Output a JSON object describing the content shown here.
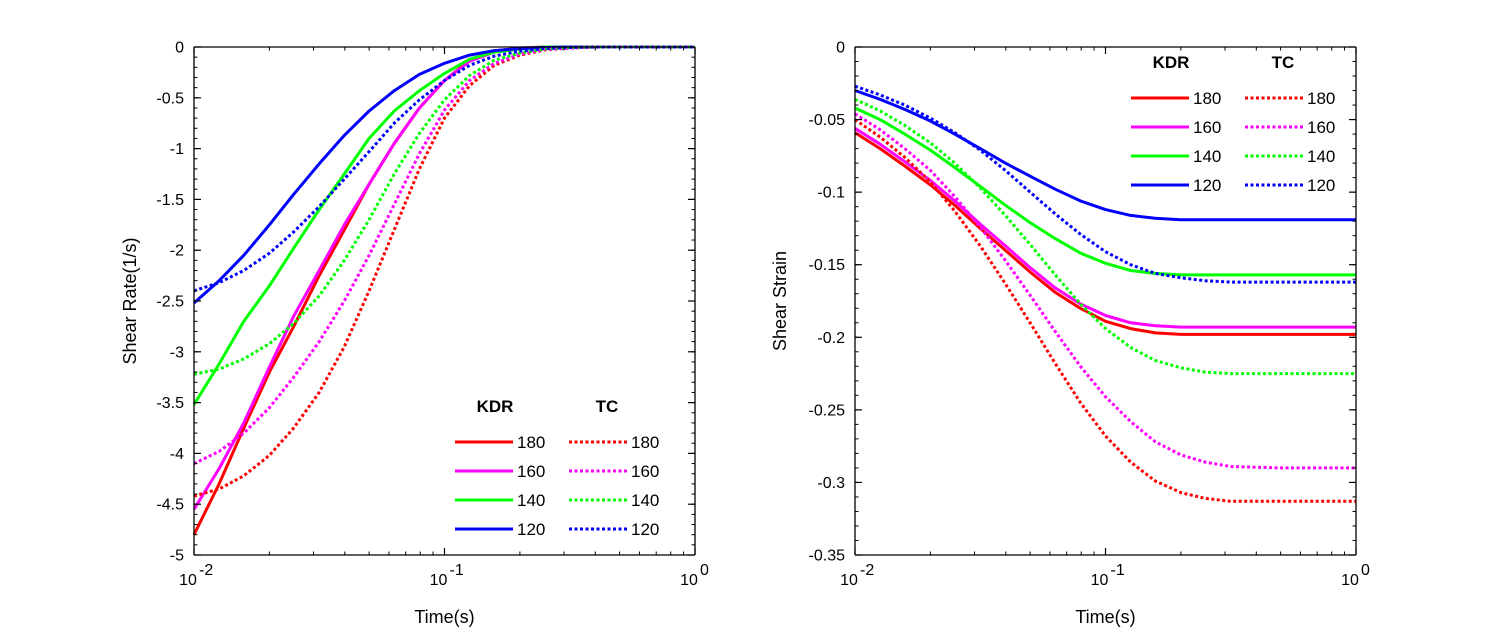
{
  "chart_data": [
    {
      "type": "line",
      "xscale": "log",
      "xlabel": "Time(s)",
      "ylabel": "Shear Rate(1/s)",
      "xlim": [
        0.01,
        1
      ],
      "ylim": [
        -5,
        0
      ],
      "yticks": [
        0,
        -0.5,
        -1,
        -1.5,
        -2,
        -2.5,
        -3,
        -3.5,
        -4,
        -4.5,
        -5
      ],
      "ytick_labels": [
        "0",
        "-0.5",
        "-1",
        "-1.5",
        "-2",
        "-2.5",
        "-3",
        "-3.5",
        "-4",
        "-4.5",
        "-5"
      ],
      "xticks": [
        0.01,
        0.1,
        1
      ],
      "xtick_labels": [
        {
          "base": "10",
          "exp": "-2"
        },
        {
          "base": "10",
          "exp": "-1"
        },
        {
          "base": "10",
          "exp": "0"
        }
      ],
      "legend": {
        "position": "bottom-right",
        "group_titles": [
          "KDR",
          "TC"
        ]
      },
      "series": [
        {
          "name": "180",
          "group": "KDR",
          "color": "#ff0000",
          "style": "solid",
          "x": [
            0.01,
            0.0126,
            0.0158,
            0.02,
            0.025,
            0.0316,
            0.0398,
            0.05,
            0.063,
            0.0794,
            0.1,
            0.126,
            0.158,
            0.2,
            0.25,
            0.316,
            0.5,
            1
          ],
          "y": [
            -4.8,
            -4.3,
            -3.75,
            -3.2,
            -2.75,
            -2.25,
            -1.8,
            -1.35,
            -0.95,
            -0.6,
            -0.33,
            -0.13,
            -0.04,
            -0.01,
            0,
            0,
            0,
            0
          ]
        },
        {
          "name": "160",
          "group": "KDR",
          "color": "#ff00ff",
          "style": "solid",
          "x": [
            0.01,
            0.0126,
            0.0158,
            0.02,
            0.025,
            0.0316,
            0.0398,
            0.05,
            0.063,
            0.0794,
            0.1,
            0.126,
            0.158,
            0.2,
            0.25,
            0.316,
            0.5,
            1
          ],
          "y": [
            -4.55,
            -4.15,
            -3.7,
            -3.15,
            -2.65,
            -2.2,
            -1.75,
            -1.35,
            -0.95,
            -0.6,
            -0.33,
            -0.14,
            -0.05,
            -0.015,
            0,
            0,
            0,
            0
          ]
        },
        {
          "name": "140",
          "group": "KDR",
          "color": "#00ff00",
          "style": "solid",
          "x": [
            0.01,
            0.0126,
            0.0158,
            0.02,
            0.025,
            0.0316,
            0.0398,
            0.05,
            0.063,
            0.0794,
            0.1,
            0.126,
            0.158,
            0.2,
            0.25,
            0.316,
            0.5,
            1
          ],
          "y": [
            -3.52,
            -3.12,
            -2.7,
            -2.35,
            -1.98,
            -1.6,
            -1.25,
            -0.9,
            -0.63,
            -0.43,
            -0.26,
            -0.12,
            -0.05,
            -0.02,
            0,
            0,
            0,
            0
          ]
        },
        {
          "name": "120",
          "group": "KDR",
          "color": "#0000ff",
          "style": "solid",
          "x": [
            0.01,
            0.0126,
            0.0158,
            0.02,
            0.025,
            0.0316,
            0.0398,
            0.05,
            0.063,
            0.0794,
            0.1,
            0.126,
            0.158,
            0.2,
            0.25,
            0.316,
            0.5,
            1
          ],
          "y": [
            -2.52,
            -2.3,
            -2.05,
            -1.75,
            -1.45,
            -1.15,
            -0.87,
            -0.63,
            -0.43,
            -0.27,
            -0.16,
            -0.08,
            -0.035,
            -0.015,
            -0.005,
            0,
            0,
            0
          ]
        },
        {
          "name": "180",
          "group": "TC",
          "color": "#ff0000",
          "style": "dotted",
          "x": [
            0.01,
            0.0126,
            0.0158,
            0.02,
            0.025,
            0.0316,
            0.0398,
            0.05,
            0.063,
            0.0794,
            0.1,
            0.126,
            0.158,
            0.2,
            0.25,
            0.316,
            0.4,
            0.5,
            1
          ],
          "y": [
            -4.42,
            -4.35,
            -4.22,
            -4.02,
            -3.75,
            -3.4,
            -2.95,
            -2.4,
            -1.8,
            -1.2,
            -0.7,
            -0.38,
            -0.18,
            -0.08,
            -0.03,
            -0.01,
            0,
            0,
            0
          ]
        },
        {
          "name": "160",
          "group": "TC",
          "color": "#ff00ff",
          "style": "dotted",
          "x": [
            0.01,
            0.0126,
            0.0158,
            0.02,
            0.025,
            0.0316,
            0.0398,
            0.05,
            0.063,
            0.0794,
            0.1,
            0.126,
            0.158,
            0.2,
            0.25,
            0.316,
            0.4,
            0.5,
            1
          ],
          "y": [
            -4.1,
            -3.98,
            -3.8,
            -3.55,
            -3.25,
            -2.9,
            -2.5,
            -2.05,
            -1.55,
            -1.05,
            -0.62,
            -0.33,
            -0.16,
            -0.07,
            -0.025,
            -0.01,
            0,
            0,
            0
          ]
        },
        {
          "name": "140",
          "group": "TC",
          "color": "#00ff00",
          "style": "dotted",
          "x": [
            0.01,
            0.0126,
            0.0158,
            0.02,
            0.025,
            0.0316,
            0.0398,
            0.05,
            0.063,
            0.0794,
            0.1,
            0.126,
            0.158,
            0.2,
            0.25,
            0.316,
            0.4,
            0.5,
            1
          ],
          "y": [
            -3.22,
            -3.17,
            -3.07,
            -2.92,
            -2.72,
            -2.45,
            -2.1,
            -1.7,
            -1.25,
            -0.85,
            -0.52,
            -0.28,
            -0.13,
            -0.06,
            -0.02,
            -0.005,
            0,
            0,
            0
          ]
        },
        {
          "name": "120",
          "group": "TC",
          "color": "#0000ff",
          "style": "dotted",
          "x": [
            0.01,
            0.0126,
            0.0158,
            0.02,
            0.025,
            0.0316,
            0.0398,
            0.05,
            0.063,
            0.0794,
            0.1,
            0.126,
            0.158,
            0.2,
            0.25,
            0.316,
            0.4,
            0.5,
            1
          ],
          "y": [
            -2.4,
            -2.32,
            -2.2,
            -2.03,
            -1.82,
            -1.57,
            -1.3,
            -1.03,
            -0.75,
            -0.52,
            -0.33,
            -0.18,
            -0.09,
            -0.04,
            -0.015,
            -0.005,
            0,
            0,
            0
          ]
        }
      ]
    },
    {
      "type": "line",
      "xscale": "log",
      "xlabel": "Time(s)",
      "ylabel": "Shear Strain",
      "xlim": [
        0.01,
        1
      ],
      "ylim": [
        -0.35,
        0
      ],
      "yticks": [
        0,
        -0.05,
        -0.1,
        -0.15,
        -0.2,
        -0.25,
        -0.3,
        -0.35
      ],
      "ytick_labels": [
        "0",
        "-0.05",
        "-0.1",
        "-0.15",
        "-0.2",
        "-0.25",
        "-0.3",
        "-0.35"
      ],
      "xticks": [
        0.01,
        0.1,
        1
      ],
      "xtick_labels": [
        {
          "base": "10",
          "exp": "-2"
        },
        {
          "base": "10",
          "exp": "-1"
        },
        {
          "base": "10",
          "exp": "0"
        }
      ],
      "legend": {
        "position": "top-right",
        "group_titles": [
          "KDR",
          "TC"
        ]
      },
      "series": [
        {
          "name": "180",
          "group": "KDR",
          "color": "#ff0000",
          "style": "solid",
          "x": [
            0.01,
            0.0126,
            0.0158,
            0.02,
            0.025,
            0.0316,
            0.0398,
            0.05,
            0.063,
            0.0794,
            0.1,
            0.126,
            0.158,
            0.2,
            0.25,
            0.316,
            0.5,
            1
          ],
          "y": [
            -0.059,
            -0.07,
            -0.082,
            -0.095,
            -0.109,
            -0.125,
            -0.14,
            -0.155,
            -0.169,
            -0.18,
            -0.189,
            -0.194,
            -0.197,
            -0.198,
            -0.198,
            -0.198,
            -0.198,
            -0.198
          ]
        },
        {
          "name": "160",
          "group": "KDR",
          "color": "#ff00ff",
          "style": "solid",
          "x": [
            0.01,
            0.0126,
            0.0158,
            0.02,
            0.025,
            0.0316,
            0.0398,
            0.05,
            0.063,
            0.0794,
            0.1,
            0.126,
            0.158,
            0.2,
            0.25,
            0.316,
            0.5,
            1
          ],
          "y": [
            -0.056,
            -0.067,
            -0.079,
            -0.092,
            -0.106,
            -0.122,
            -0.137,
            -0.152,
            -0.166,
            -0.177,
            -0.185,
            -0.19,
            -0.192,
            -0.193,
            -0.193,
            -0.193,
            -0.193,
            -0.193
          ]
        },
        {
          "name": "140",
          "group": "KDR",
          "color": "#00ff00",
          "style": "solid",
          "x": [
            0.01,
            0.0126,
            0.0158,
            0.02,
            0.025,
            0.0316,
            0.0398,
            0.05,
            0.063,
            0.0794,
            0.1,
            0.126,
            0.158,
            0.2,
            0.25,
            0.316,
            0.5,
            1
          ],
          "y": [
            -0.042,
            -0.05,
            -0.06,
            -0.071,
            -0.083,
            -0.096,
            -0.109,
            -0.121,
            -0.132,
            -0.142,
            -0.149,
            -0.154,
            -0.156,
            -0.157,
            -0.157,
            -0.157,
            -0.157,
            -0.157
          ]
        },
        {
          "name": "120",
          "group": "KDR",
          "color": "#0000ff",
          "style": "solid",
          "x": [
            0.01,
            0.0126,
            0.0158,
            0.02,
            0.025,
            0.0316,
            0.0398,
            0.05,
            0.063,
            0.0794,
            0.1,
            0.126,
            0.158,
            0.2,
            0.25,
            0.316,
            0.5,
            1
          ],
          "y": [
            -0.03,
            -0.036,
            -0.043,
            -0.051,
            -0.06,
            -0.07,
            -0.08,
            -0.089,
            -0.098,
            -0.106,
            -0.112,
            -0.116,
            -0.118,
            -0.119,
            -0.119,
            -0.119,
            -0.119,
            -0.119
          ]
        },
        {
          "name": "180",
          "group": "TC",
          "color": "#ff0000",
          "style": "dotted",
          "x": [
            0.01,
            0.0126,
            0.0158,
            0.02,
            0.025,
            0.0316,
            0.0398,
            0.05,
            0.063,
            0.0794,
            0.1,
            0.126,
            0.158,
            0.2,
            0.25,
            0.316,
            0.5,
            1
          ],
          "y": [
            -0.05,
            -0.062,
            -0.076,
            -0.093,
            -0.113,
            -0.137,
            -0.163,
            -0.19,
            -0.218,
            -0.245,
            -0.268,
            -0.286,
            -0.299,
            -0.307,
            -0.311,
            -0.313,
            -0.313,
            -0.313
          ]
        },
        {
          "name": "160",
          "group": "TC",
          "color": "#ff00ff",
          "style": "dotted",
          "x": [
            0.01,
            0.0126,
            0.0158,
            0.02,
            0.025,
            0.0316,
            0.0398,
            0.05,
            0.063,
            0.0794,
            0.1,
            0.126,
            0.158,
            0.2,
            0.25,
            0.316,
            0.5,
            1
          ],
          "y": [
            -0.046,
            -0.057,
            -0.07,
            -0.085,
            -0.103,
            -0.124,
            -0.147,
            -0.171,
            -0.196,
            -0.22,
            -0.241,
            -0.258,
            -0.272,
            -0.281,
            -0.286,
            -0.289,
            -0.29,
            -0.29
          ]
        },
        {
          "name": "140",
          "group": "TC",
          "color": "#00ff00",
          "style": "dotted",
          "x": [
            0.01,
            0.0126,
            0.0158,
            0.02,
            0.025,
            0.0316,
            0.0398,
            0.05,
            0.063,
            0.0794,
            0.1,
            0.126,
            0.158,
            0.2,
            0.25,
            0.316,
            0.5,
            1
          ],
          "y": [
            -0.036,
            -0.044,
            -0.054,
            -0.066,
            -0.08,
            -0.097,
            -0.116,
            -0.136,
            -0.157,
            -0.177,
            -0.194,
            -0.207,
            -0.216,
            -0.221,
            -0.224,
            -0.225,
            -0.225,
            -0.225
          ]
        },
        {
          "name": "120",
          "group": "TC",
          "color": "#0000ff",
          "style": "dotted",
          "x": [
            0.01,
            0.0126,
            0.0158,
            0.02,
            0.025,
            0.0316,
            0.0398,
            0.05,
            0.063,
            0.0794,
            0.1,
            0.126,
            0.158,
            0.2,
            0.25,
            0.316,
            0.5,
            1
          ],
          "y": [
            -0.027,
            -0.033,
            -0.04,
            -0.049,
            -0.059,
            -0.071,
            -0.085,
            -0.1,
            -0.115,
            -0.129,
            -0.141,
            -0.15,
            -0.156,
            -0.159,
            -0.161,
            -0.162,
            -0.162,
            -0.162
          ]
        }
      ]
    }
  ]
}
